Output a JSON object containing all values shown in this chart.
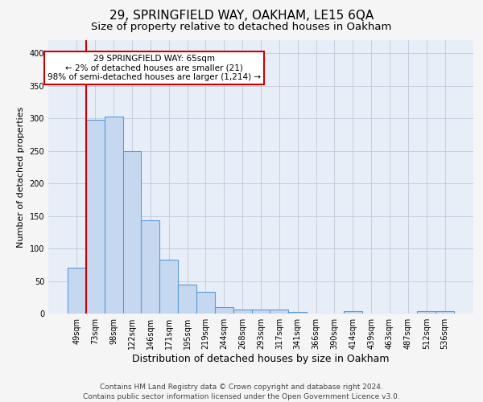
{
  "title1": "29, SPRINGFIELD WAY, OAKHAM, LE15 6QA",
  "title2": "Size of property relative to detached houses in Oakham",
  "xlabel": "Distribution of detached houses by size in Oakham",
  "ylabel": "Number of detached properties",
  "categories": [
    "49sqm",
    "73sqm",
    "98sqm",
    "122sqm",
    "146sqm",
    "171sqm",
    "195sqm",
    "219sqm",
    "244sqm",
    "268sqm",
    "293sqm",
    "317sqm",
    "341sqm",
    "366sqm",
    "390sqm",
    "414sqm",
    "439sqm",
    "463sqm",
    "487sqm",
    "512sqm",
    "536sqm"
  ],
  "values": [
    70,
    298,
    303,
    250,
    143,
    83,
    45,
    33,
    10,
    6,
    6,
    6,
    3,
    0,
    0,
    4,
    0,
    0,
    0,
    4,
    4
  ],
  "bar_color": "#c5d8f0",
  "bar_edge_color": "#5b9bd5",
  "marker_color": "#cc0000",
  "annotation_text": "29 SPRINGFIELD WAY: 65sqm\n← 2% of detached houses are smaller (21)\n98% of semi-detached houses are larger (1,214) →",
  "annotation_box_color": "#ffffff",
  "annotation_box_edge_color": "#cc0000",
  "ylim": [
    0,
    420
  ],
  "yticks": [
    0,
    50,
    100,
    150,
    200,
    250,
    300,
    350,
    400
  ],
  "grid_color": "#c0c8d8",
  "background_color": "#e8eef8",
  "fig_background_color": "#f5f5f5",
  "footer_text": "Contains HM Land Registry data © Crown copyright and database right 2024.\nContains public sector information licensed under the Open Government Licence v3.0.",
  "title1_fontsize": 11,
  "title2_fontsize": 9.5,
  "xlabel_fontsize": 9,
  "ylabel_fontsize": 8,
  "tick_fontsize": 7,
  "footer_fontsize": 6.5,
  "annotation_fontsize": 7.5
}
